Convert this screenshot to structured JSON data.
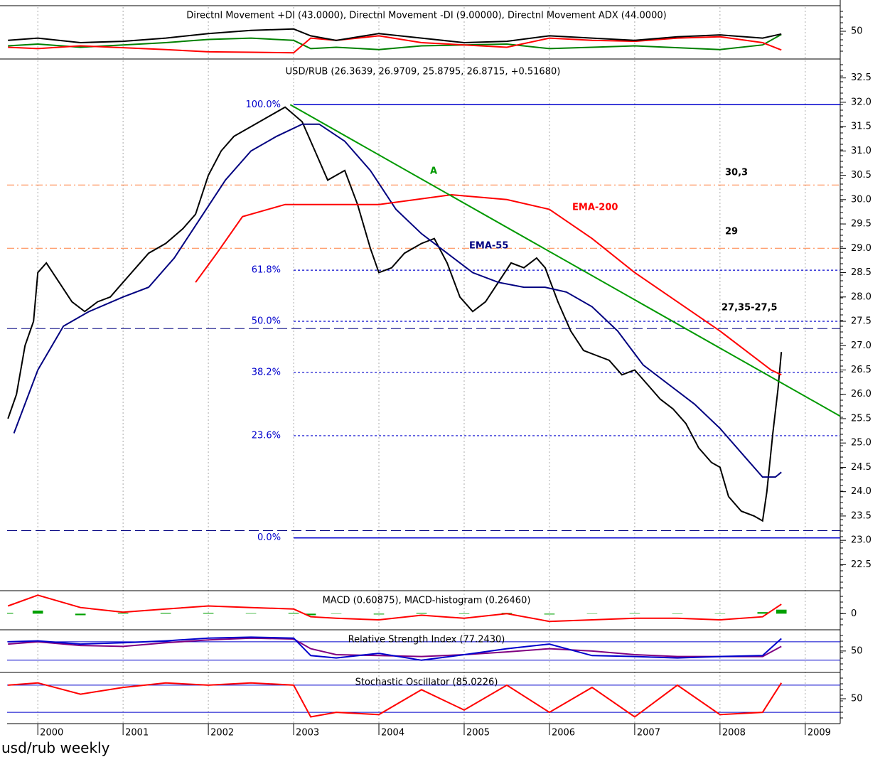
{
  "caption": "usd/rub weekly",
  "x_axis": {
    "xlim": [
      1999.64,
      2009.41
    ],
    "xticks": [
      2000,
      2001,
      2002,
      2003,
      2004,
      2005,
      2006,
      2007,
      2008,
      2009
    ],
    "grid": true
  },
  "chart_data": [
    {
      "type": "line",
      "title": "Directnl Movement +DI (43.0000), Directnl Movement -DI (9.00000), Directnl Movement ADX (44.0000)",
      "ylim": [
        -3,
        103
      ],
      "yticks": [
        50
      ],
      "series": [
        {
          "color": "#008000",
          "x": [
            1999.65,
            2000.0,
            2000.5,
            2001.0,
            2001.5,
            2002.0,
            2002.5,
            2003.0,
            2003.2,
            2003.5,
            2004.0,
            2004.5,
            2005.0,
            2005.5,
            2006.0,
            2006.5,
            2007.0,
            2007.5,
            2008.0,
            2008.5,
            2008.72
          ],
          "values": [
            18,
            22,
            15,
            20,
            25,
            32,
            35,
            30,
            12,
            15,
            10,
            18,
            20,
            22,
            12,
            15,
            18,
            14,
            10,
            20,
            43
          ]
        },
        {
          "color": "#ff0000",
          "x": [
            1999.65,
            2000.0,
            2000.5,
            2001.0,
            2001.5,
            2002.0,
            2002.5,
            2003.0,
            2003.2,
            2003.5,
            2004.0,
            2004.5,
            2005.0,
            2005.5,
            2006.0,
            2006.5,
            2007.0,
            2007.5,
            2008.0,
            2008.5,
            2008.72
          ],
          "values": [
            15,
            12,
            18,
            14,
            10,
            5,
            4,
            3,
            35,
            30,
            40,
            25,
            20,
            15,
            35,
            30,
            28,
            35,
            38,
            25,
            9
          ]
        },
        {
          "color": "#000000",
          "x": [
            1999.65,
            2000.0,
            2000.5,
            2001.0,
            2001.5,
            2002.0,
            2002.5,
            2003.0,
            2003.2,
            2003.5,
            2004.0,
            2004.5,
            2005.0,
            2005.5,
            2006.0,
            2006.5,
            2007.0,
            2007.5,
            2008.0,
            2008.5,
            2008.72
          ],
          "values": [
            30,
            35,
            25,
            28,
            35,
            45,
            52,
            55,
            40,
            30,
            45,
            35,
            25,
            28,
            40,
            35,
            30,
            38,
            42,
            35,
            44
          ]
        }
      ]
    },
    {
      "type": "line",
      "title": "USD/RUB (26.3639, 26.9709, 25.8795, 26.8715, +0.51680)",
      "ylim": [
        21.98,
        32.86
      ],
      "yticks": [
        22.5,
        {
          "value": 23,
          "label": "23.0"
        },
        23.5,
        {
          "value": 24,
          "label": "24.0"
        },
        24.5,
        {
          "value": 25,
          "label": "25.0"
        },
        25.5,
        {
          "value": 26,
          "label": "26.0"
        },
        26.5,
        {
          "value": 27,
          "label": "27.0"
        },
        27.5,
        {
          "value": 28,
          "label": "28.0"
        },
        28.5,
        {
          "value": 29,
          "label": "29.0"
        },
        29.5,
        {
          "value": 30,
          "label": "30.0"
        },
        30.5,
        {
          "value": 31,
          "label": "31.0"
        },
        31.5,
        {
          "value": 32,
          "label": "32.0"
        },
        32.5
      ],
      "levels": [
        {
          "value": 30.3,
          "color": "#ff8040",
          "style": "dashdot"
        },
        {
          "value": 29.0,
          "color": "#ff8040",
          "style": "dashdot"
        },
        {
          "value": 27.35,
          "color": "#000080",
          "style": "dashed"
        },
        {
          "value": 23.2,
          "color": "#000080",
          "style": "dashed"
        }
      ],
      "fibonacci": {
        "color": "#0000cc",
        "start": 2003.0,
        "levels": [
          {
            "label": "100.0%",
            "value": 31.95,
            "style": "solid"
          },
          {
            "label": "61.8%",
            "value": 28.55,
            "style": "dotted"
          },
          {
            "label": "50.0%",
            "value": 27.5,
            "style": "dotted"
          },
          {
            "label": "38.2%",
            "value": 26.45,
            "style": "dotted"
          },
          {
            "label": "23.6%",
            "value": 25.15,
            "style": "dotted"
          },
          {
            "label": "0.0%",
            "value": 23.05,
            "style": "solid"
          }
        ]
      },
      "series": [
        {
          "color": "#000000",
          "x": [
            1999.65,
            1999.75,
            1999.85,
            1999.95,
            2000.0,
            2000.1,
            2000.25,
            2000.4,
            2000.55,
            2000.7,
            2000.85,
            2001.0,
            2001.15,
            2001.3,
            2001.5,
            2001.7,
            2001.85,
            2002.0,
            2002.15,
            2002.3,
            2002.5,
            2002.7,
            2002.9,
            2003.1,
            2003.25,
            2003.4,
            2003.6,
            2003.75,
            2003.9,
            2004.0,
            2004.15,
            2004.3,
            2004.5,
            2004.65,
            2004.8,
            2004.95,
            2005.1,
            2005.25,
            2005.4,
            2005.55,
            2005.7,
            2005.85,
            2005.95,
            2006.1,
            2006.25,
            2006.4,
            2006.55,
            2006.7,
            2006.85,
            2007.0,
            2007.15,
            2007.3,
            2007.45,
            2007.6,
            2007.75,
            2007.9,
            2008.0,
            2008.1,
            2008.25,
            2008.4,
            2008.5,
            2008.55,
            2008.62,
            2008.68,
            2008.72
          ],
          "values": [
            25.5,
            26.0,
            27.0,
            27.5,
            28.5,
            28.7,
            28.3,
            27.9,
            27.7,
            27.9,
            28.0,
            28.3,
            28.6,
            28.9,
            29.1,
            29.4,
            29.7,
            30.5,
            31.0,
            31.3,
            31.5,
            31.7,
            31.9,
            31.6,
            31.0,
            30.4,
            30.6,
            29.9,
            29.0,
            28.5,
            28.6,
            28.9,
            29.1,
            29.2,
            28.7,
            28.0,
            27.7,
            27.9,
            28.3,
            28.7,
            28.6,
            28.8,
            28.6,
            27.9,
            27.3,
            26.9,
            26.8,
            26.7,
            26.4,
            26.5,
            26.2,
            25.9,
            25.7,
            25.4,
            24.9,
            24.6,
            24.5,
            23.9,
            23.6,
            23.5,
            23.4,
            24.0,
            25.2,
            26.1,
            26.87
          ]
        },
        {
          "color": "#000080",
          "x": [
            1999.72,
            2000.0,
            2000.3,
            2000.6,
            2001.0,
            2001.3,
            2001.6,
            2001.9,
            2002.2,
            2002.5,
            2002.8,
            2003.1,
            2003.3,
            2003.6,
            2003.9,
            2004.2,
            2004.5,
            2004.8,
            2005.1,
            2005.4,
            2005.7,
            2005.95,
            2006.2,
            2006.5,
            2006.8,
            2007.1,
            2007.4,
            2007.7,
            2008.0,
            2008.3,
            2008.5,
            2008.65,
            2008.72
          ],
          "values": [
            25.2,
            26.5,
            27.4,
            27.7,
            28.0,
            28.2,
            28.8,
            29.6,
            30.4,
            31.0,
            31.3,
            31.55,
            31.55,
            31.2,
            30.6,
            29.8,
            29.3,
            28.9,
            28.5,
            28.3,
            28.2,
            28.2,
            28.1,
            27.8,
            27.3,
            26.6,
            26.2,
            25.8,
            25.3,
            24.7,
            24.3,
            24.3,
            24.4
          ]
        },
        {
          "color": "#ff0000",
          "x": [
            2001.85,
            2002.1,
            2002.4,
            2002.9,
            2003.3,
            2004.0,
            2004.85,
            2005.5,
            2006.0,
            2006.5,
            2007.0,
            2007.5,
            2008.0,
            2008.3,
            2008.6,
            2008.72
          ],
          "values": [
            28.3,
            28.9,
            29.65,
            29.9,
            29.9,
            29.9,
            30.1,
            30.0,
            29.8,
            29.2,
            28.5,
            27.9,
            27.3,
            26.9,
            26.5,
            26.4
          ]
        },
        {
          "color": "#009900",
          "x": [
            2002.96,
            2009.41
          ],
          "values": [
            31.95,
            25.55
          ]
        }
      ],
      "annotations": [
        {
          "text": "A",
          "color": "#009900"
        },
        {
          "text": "EMA-200",
          "color": "#ff0000"
        },
        {
          "text": "EMA-55",
          "color": "#000080"
        },
        {
          "text": "30,3",
          "color": "#000000"
        },
        {
          "text": "29",
          "color": "#000000"
        },
        {
          "text": "27,35-27,5",
          "color": "#000000"
        }
      ]
    },
    {
      "type": "line",
      "title": "MACD (0.60875), MACD-histogram (0.26460)",
      "ylim": [
        -1,
        1.4
      ],
      "yticks": [
        0
      ],
      "series": [
        {
          "type": "bar",
          "color": "#00a000",
          "x": [
            1999.65,
            2000.0,
            2000.5,
            2001.0,
            2001.5,
            2002.0,
            2002.5,
            2003.0,
            2003.2,
            2003.5,
            2004.0,
            2004.5,
            2005.0,
            2005.5,
            2006.0,
            2006.5,
            2007.0,
            2007.5,
            2008.0,
            2008.5,
            2008.72
          ],
          "values": [
            0.05,
            0.2,
            -0.1,
            0.05,
            0.05,
            0.05,
            0.03,
            0.05,
            -0.1,
            0.02,
            -0.05,
            0.05,
            -0.03,
            0.05,
            -0.05,
            0.02,
            0.03,
            -0.02,
            0.02,
            0.1,
            0.26
          ]
        },
        {
          "color": "#ff0000",
          "x": [
            1999.65,
            2000.0,
            2000.5,
            2001.0,
            2001.5,
            2002.0,
            2002.5,
            2003.0,
            2003.2,
            2003.5,
            2004.0,
            2004.5,
            2005.0,
            2005.5,
            2006.0,
            2006.5,
            2007.0,
            2007.5,
            2008.0,
            2008.5,
            2008.72
          ],
          "values": [
            0.5,
            1.2,
            0.4,
            0.1,
            0.3,
            0.5,
            0.4,
            0.3,
            -0.2,
            -0.3,
            -0.4,
            -0.1,
            -0.3,
            0.0,
            -0.5,
            -0.4,
            -0.3,
            -0.3,
            -0.4,
            -0.2,
            0.61
          ]
        }
      ]
    },
    {
      "type": "line",
      "title": "Relative Strength Index (77.2430)",
      "ylim": [
        5,
        93
      ],
      "yticks": [
        50
      ],
      "levels": [
        {
          "value": 70,
          "color": "#0000cc",
          "style": "solid"
        },
        {
          "value": 30,
          "color": "#0000cc",
          "style": "solid"
        }
      ],
      "series": [
        {
          "color": "#800080",
          "x": [
            1999.65,
            2000.0,
            2000.5,
            2001.0,
            2001.5,
            2002.0,
            2002.5,
            2003.0,
            2003.2,
            2003.5,
            2004.0,
            2004.5,
            2005.0,
            2005.5,
            2006.0,
            2006.5,
            2007.0,
            2007.5,
            2008.0,
            2008.5,
            2008.72
          ],
          "values": [
            65,
            70,
            62,
            60,
            68,
            74,
            78,
            76,
            55,
            42,
            40,
            38,
            42,
            48,
            55,
            50,
            42,
            38,
            38,
            38,
            60
          ]
        },
        {
          "color": "#0000cc",
          "x": [
            1999.65,
            2000.0,
            2000.5,
            2001.0,
            2001.5,
            2002.0,
            2002.5,
            2003.0,
            2003.2,
            2003.5,
            2004.0,
            2004.5,
            2005.0,
            2005.5,
            2006.0,
            2006.5,
            2007.0,
            2007.5,
            2008.0,
            2008.5,
            2008.72
          ],
          "values": [
            70,
            72,
            65,
            68,
            72,
            78,
            80,
            78,
            40,
            35,
            45,
            30,
            42,
            55,
            65,
            40,
            38,
            35,
            38,
            40,
            77
          ]
        }
      ]
    },
    {
      "type": "line",
      "title": "Stochastic Oscillator (85.0226)",
      "ylim": [
        -5,
        105
      ],
      "yticks": [
        50
      ],
      "levels": [
        {
          "value": 80,
          "color": "#0000cc",
          "style": "solid"
        },
        {
          "value": 20,
          "color": "#0000cc",
          "style": "solid"
        }
      ],
      "series": [
        {
          "color": "#ff0000",
          "x": [
            1999.65,
            2000.0,
            2000.5,
            2001.0,
            2001.5,
            2002.0,
            2002.5,
            2003.0,
            2003.2,
            2003.5,
            2004.0,
            2004.5,
            2005.0,
            2005.5,
            2006.0,
            2006.5,
            2007.0,
            2007.5,
            2008.0,
            2008.5,
            2008.72
          ],
          "values": [
            80,
            85,
            60,
            75,
            85,
            80,
            85,
            80,
            10,
            20,
            15,
            70,
            25,
            80,
            20,
            75,
            10,
            80,
            15,
            20,
            85
          ]
        }
      ]
    }
  ]
}
